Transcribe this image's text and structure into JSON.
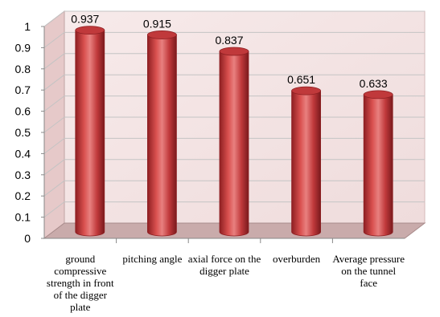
{
  "chart_data": {
    "type": "bar",
    "style": "3d-cylinder",
    "categories": [
      "ground compressive strength in front of the digger plate",
      "pitching angle",
      "axial force on the digger plate",
      "overburden",
      "Average pressure on the tunnel face"
    ],
    "values": [
      0.937,
      0.915,
      0.837,
      0.651,
      0.633
    ],
    "data_labels": [
      "0.937",
      "0.915",
      "0.837",
      "0.651",
      "0.633"
    ],
    "ylim": [
      0,
      1
    ],
    "yticks": [
      0,
      0.1,
      0.2,
      0.3,
      0.4,
      0.5,
      0.6,
      0.7,
      0.8,
      0.9,
      1
    ],
    "ytick_labels": [
      "0",
      "0.1",
      "0.2",
      "0.3",
      "0.4",
      "0.5",
      "0.6",
      "0.7",
      "0.8",
      "0.9",
      "1"
    ],
    "grid": true,
    "legend": false,
    "colors": {
      "bar": "#c0393b",
      "bar_dark": "#8e1f22",
      "bar_light": "#e8807f",
      "wall": "#f3e1e1",
      "wall_side": "#e6c9c9",
      "floor": "#c9abab",
      "grid": "#c4c4c4"
    }
  }
}
